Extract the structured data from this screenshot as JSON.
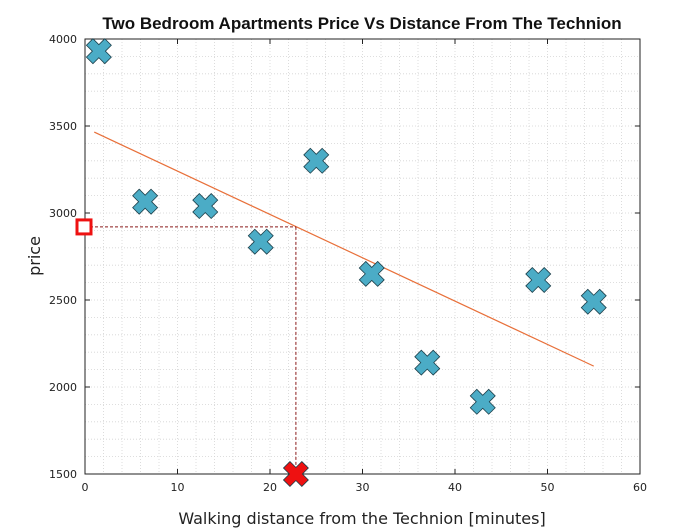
{
  "chart_data": {
    "type": "scatter",
    "title": "Two Bedroom Apartments Price Vs Distance From The Technion",
    "xlabel": "Walking distance from the Technion [minutes]",
    "ylabel": "price",
    "xlim": [
      0,
      60
    ],
    "ylim": [
      1500,
      4000
    ],
    "xticks": [
      0,
      10,
      20,
      30,
      40,
      50,
      60
    ],
    "yticks": [
      1500,
      2000,
      2500,
      3000,
      3500,
      4000
    ],
    "grid": "minor-dotted",
    "series": [
      {
        "marker": "x",
        "color": "#4bacc6",
        "points": [
          {
            "x": 1.5,
            "y": 3930
          },
          {
            "x": 6.5,
            "y": 3065
          },
          {
            "x": 13,
            "y": 3040
          },
          {
            "x": 19,
            "y": 2835
          },
          {
            "x": 25,
            "y": 3300
          },
          {
            "x": 31,
            "y": 2650
          },
          {
            "x": 37,
            "y": 2140
          },
          {
            "x": 43,
            "y": 1915
          },
          {
            "x": 49,
            "y": 2615
          },
          {
            "x": 55,
            "y": 2490
          }
        ]
      }
    ],
    "fit_line": {
      "color": "#e8703a",
      "points": [
        {
          "x": 1,
          "y": 3465
        },
        {
          "x": 55,
          "y": 2120
        }
      ]
    },
    "prediction": {
      "color": "#ee1111",
      "x": 22.8,
      "y": 2920,
      "x_marker_y": 1500
    }
  }
}
